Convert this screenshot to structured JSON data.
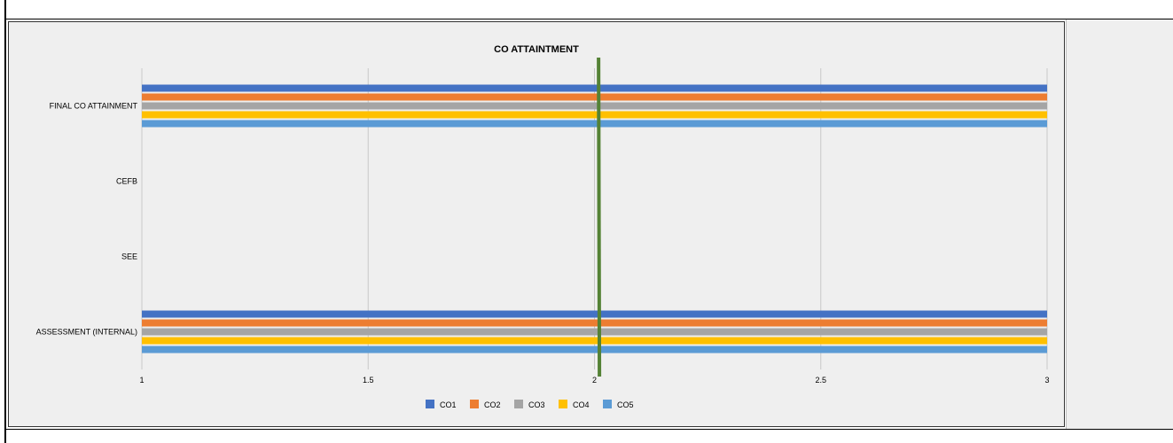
{
  "chart_data": {
    "type": "bar",
    "orientation": "horizontal",
    "title": "CO ATTAINTMENT",
    "categories": [
      "ASSESSMENT (INTERNAL)",
      "SEE",
      "CEFB",
      "FINAL CO ATTAINMENT"
    ],
    "series": [
      {
        "name": "CO1",
        "color": "#4472c4",
        "values": [
          3,
          null,
          null,
          3
        ]
      },
      {
        "name": "CO2",
        "color": "#ed7d31",
        "values": [
          3,
          null,
          null,
          3
        ]
      },
      {
        "name": "CO3",
        "color": "#a5a5a5",
        "values": [
          3,
          null,
          null,
          3
        ]
      },
      {
        "name": "CO4",
        "color": "#ffc000",
        "values": [
          3,
          null,
          null,
          3
        ]
      },
      {
        "name": "CO5",
        "color": "#5b9bd5",
        "values": [
          3,
          null,
          null,
          3
        ]
      }
    ],
    "x_ticks": [
      "1",
      "1.5",
      "2",
      "2.5",
      "3"
    ],
    "xlim": [
      1,
      3
    ],
    "reference_line": {
      "value": 2.01,
      "color": "#548235"
    },
    "grid": true,
    "legend": "bottom"
  }
}
